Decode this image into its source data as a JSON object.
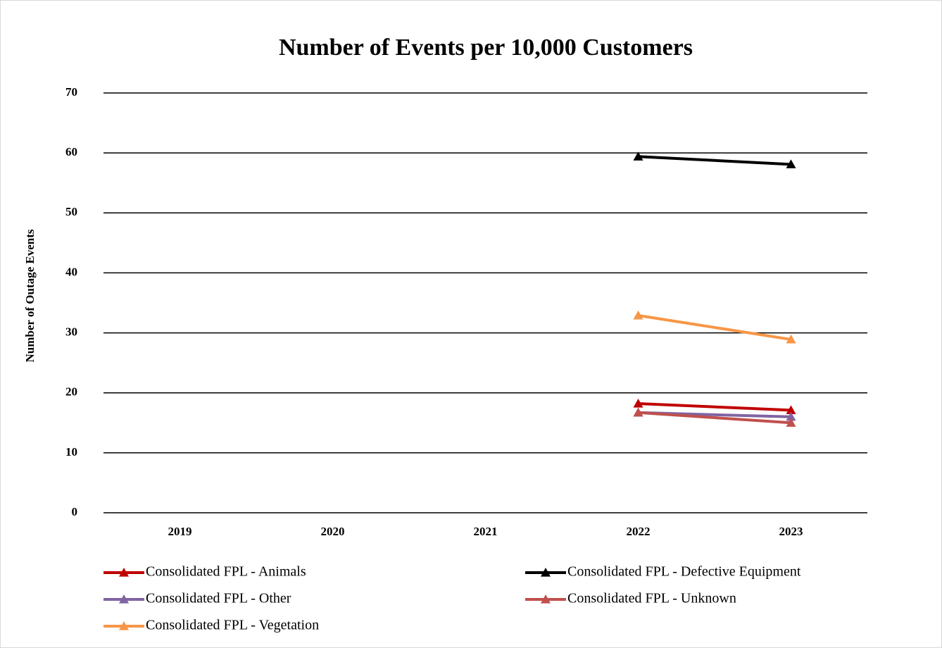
{
  "chart_data": {
    "type": "line",
    "title": "Number of Events per 10,000 Customers",
    "y_label": "Number of Outage Events",
    "categories": [
      "2019",
      "2020",
      "2021",
      "2022",
      "2023"
    ],
    "series": [
      {
        "name": "Consolidated FPL - Animals",
        "color": "#c00000",
        "values": [
          null,
          null,
          null,
          18.2,
          17.1
        ]
      },
      {
        "name": "Consolidated FPL - Defective Equipment",
        "color": "#000000",
        "values": [
          null,
          null,
          null,
          59.4,
          58.1
        ]
      },
      {
        "name": "Consolidated FPL - Other",
        "color": "#8064a2",
        "values": [
          null,
          null,
          null,
          16.7,
          16.0
        ]
      },
      {
        "name": "Consolidated FPL - Unknown",
        "color": "#c0504d",
        "values": [
          null,
          null,
          null,
          16.7,
          15.0
        ]
      },
      {
        "name": "Consolidated FPL - Vegetation",
        "color": "#f79646",
        "values": [
          null,
          null,
          null,
          32.9,
          28.9
        ]
      }
    ],
    "ylim": [
      0,
      70
    ],
    "yticks": [
      0,
      10,
      20,
      30,
      40,
      50,
      60,
      70
    ],
    "grid": true,
    "legend": "bottom"
  }
}
